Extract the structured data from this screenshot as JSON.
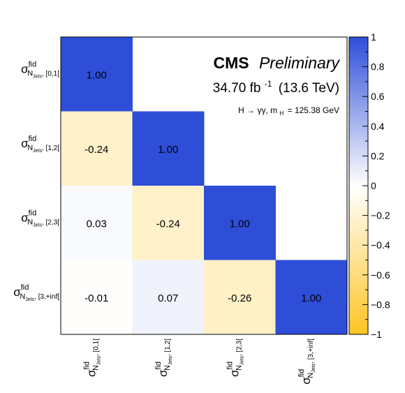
{
  "chart_data": {
    "type": "heatmap",
    "title_bold": "CMS",
    "title_italic": "Preliminary",
    "luminosity": "34.70 fb",
    "luminosity_exp": "-1",
    "energy": "(13.6 TeV)",
    "process": "H → γγ, m",
    "process_sub": "H",
    "process_mass": "= 125.38 GeV",
    "symbol": "σ",
    "sup": "fid",
    "sub_main": "N",
    "sub_sub": "Jets",
    "labels": [
      {
        "bin": ", [0,1["
      },
      {
        "bin": ", [1,2["
      },
      {
        "bin": ", [2,3["
      },
      {
        "bin": ", [3,+inf["
      }
    ],
    "matrix": [
      [
        1.0,
        null,
        null,
        null
      ],
      [
        -0.24,
        1.0,
        null,
        null
      ],
      [
        0.03,
        -0.24,
        1.0,
        null
      ],
      [
        -0.01,
        0.07,
        -0.26,
        1.0
      ]
    ],
    "zlim": [
      -1,
      1
    ],
    "colorbar_ticks": [
      "1",
      "0.8",
      "0.6",
      "0.4",
      "0.2",
      "0",
      "−0.2",
      "−0.4",
      "−0.6",
      "−0.8",
      "−1"
    ],
    "colors": {
      "positive": "#2e4ed8",
      "zero": "#ffffff",
      "negative": "#ffc424"
    }
  }
}
